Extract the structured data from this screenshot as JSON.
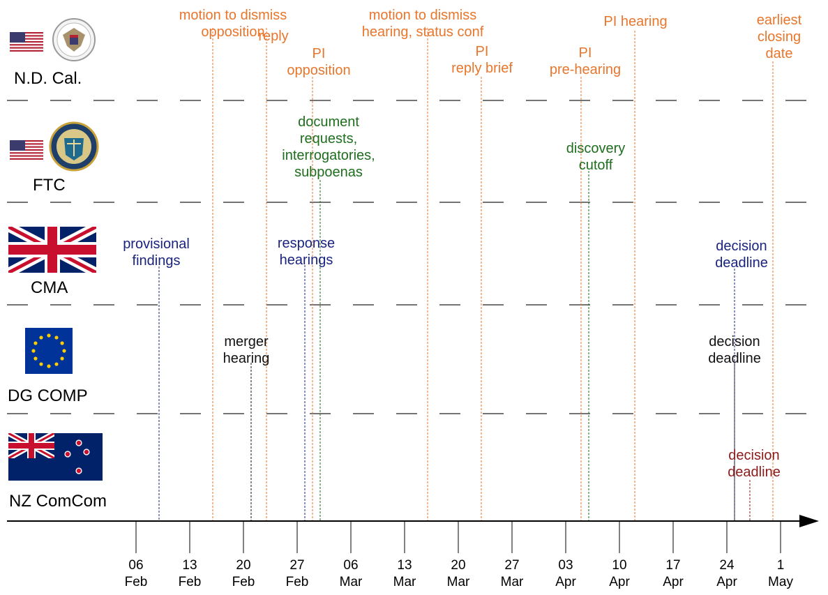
{
  "colors": {
    "court": "#e8762c",
    "ftc": "#1e6e1e",
    "cma": "#1a237e",
    "dgcomp": "#111111",
    "nz": "#8b1a1a",
    "separator": "#222222"
  },
  "agencies": [
    {
      "label": "N.D. Cal.",
      "icon": "us-flag-icon",
      "seal": "court-seal-icon"
    },
    {
      "label": "FTC",
      "icon": "us-flag-icon",
      "seal": "ftc-seal-icon"
    },
    {
      "label": "CMA",
      "icon": "uk-flag-icon"
    },
    {
      "label": "DG COMP",
      "icon": "eu-flag-icon"
    },
    {
      "label": "NZ ComCom",
      "icon": "nz-flag-icon"
    }
  ],
  "timeline": {
    "start_date": "2023-02-06",
    "ticks": [
      {
        "day": "06",
        "month": "Feb"
      },
      {
        "day": "13",
        "month": "Feb"
      },
      {
        "day": "20",
        "month": "Feb"
      },
      {
        "day": "27",
        "month": "Feb"
      },
      {
        "day": "06",
        "month": "Mar"
      },
      {
        "day": "13",
        "month": "Mar"
      },
      {
        "day": "20",
        "month": "Mar"
      },
      {
        "day": "27",
        "month": "Mar"
      },
      {
        "day": "03",
        "month": "Apr"
      },
      {
        "day": "10",
        "month": "Apr"
      },
      {
        "day": "17",
        "month": "Apr"
      },
      {
        "day": "24",
        "month": "Apr"
      },
      {
        "day": "1",
        "month": "May"
      }
    ]
  },
  "events": [
    {
      "group": "court",
      "date": "2023-02-16",
      "lines": [
        "motion to dismiss",
        "opposition"
      ]
    },
    {
      "group": "court",
      "date": "2023-02-23",
      "lines": [
        "reply"
      ]
    },
    {
      "group": "court",
      "date": "2023-03-01",
      "lines": [
        "PI",
        "opposition"
      ]
    },
    {
      "group": "court",
      "date": "2023-03-16",
      "lines": [
        "motion to dismiss",
        "hearing, status conf"
      ]
    },
    {
      "group": "court",
      "date": "2023-03-23",
      "lines": [
        "PI",
        "reply brief"
      ]
    },
    {
      "group": "court",
      "date": "2023-04-05",
      "lines": [
        "PI",
        "pre-hearing"
      ]
    },
    {
      "group": "court",
      "date": "2023-04-12",
      "lines": [
        "PI hearing"
      ]
    },
    {
      "group": "court",
      "date": "2023-04-30",
      "lines": [
        "earliest",
        "closing",
        "date"
      ]
    },
    {
      "group": "ftc",
      "date": "2023-03-02",
      "lines": [
        "document",
        "requests,",
        "interrogatories,",
        "subpoenas"
      ]
    },
    {
      "group": "ftc",
      "date": "2023-04-06",
      "lines": [
        "discovery",
        "cutoff"
      ]
    },
    {
      "group": "cma",
      "date": "2023-02-09",
      "lines": [
        "provisional",
        "findings"
      ]
    },
    {
      "group": "cma",
      "date": "2023-02-28",
      "lines": [
        "response",
        "hearings"
      ]
    },
    {
      "group": "cma",
      "date": "2023-04-25",
      "lines": [
        "decision",
        "deadline"
      ]
    },
    {
      "group": "dgcomp",
      "date": "2023-02-21",
      "lines": [
        "merger",
        "hearing"
      ]
    },
    {
      "group": "dgcomp",
      "date": "2023-04-25",
      "lines": [
        "decision",
        "deadline"
      ]
    },
    {
      "group": "nz",
      "date": "2023-04-27",
      "lines": [
        "decision",
        "deadline"
      ]
    }
  ]
}
